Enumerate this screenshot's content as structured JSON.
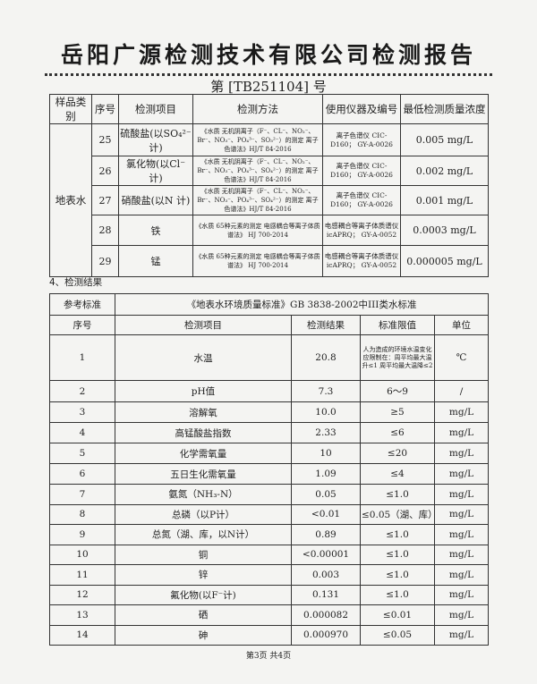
{
  "title": "岳阳广源检测技术有限公司检测报告",
  "report_no": "第 [TB251104] 号",
  "methods_table": {
    "headers": [
      "样品类别",
      "序号",
      "检测项目",
      "检测方法",
      "使用仪器及编号",
      "最低检测质量浓度"
    ],
    "category": "地表水",
    "rows": [
      {
        "no": "25",
        "item": "硫酸盐(以SO₄²⁻计)",
        "method": "《水质 无机阴离子（F⁻、CL⁻、NO₂⁻、Br⁻、NO₃⁻、PO₄³⁻、SO₃²⁻）的测定 离子色谱法》HJ/T 84-2016",
        "instrument": "离子色谱仪 CIC-D160； GY-A-0026",
        "limit": "0.005 mg/L"
      },
      {
        "no": "26",
        "item": "氯化物(以Cl⁻计)",
        "method": "《水质 无机阴离子（F⁻、CL⁻、NO₂⁻、Br⁻、NO₃⁻、PO₄³⁻、SO₄²⁻）的测定 离子色谱法》HJ/T 84-2016",
        "instrument": "离子色谱仪 CIC-D160； GY-A-0026",
        "limit": "0.002 mg/L"
      },
      {
        "no": "27",
        "item": "硝酸盐(以N 计)",
        "method": "《水质 无机阴离子（F⁻、CL⁻、NO₂⁻、Br⁻、NO₃⁻、PO₄³⁻、SO₄²⁻）的测定 离子色谱法》HJ/T 84-2016",
        "instrument": "离子色谱仪 CIC-D160； GY-A-0026",
        "limit": "0.001 mg/L"
      },
      {
        "no": "28",
        "item": "铁",
        "method": "《水质 65种元素的测定 电感耦合等离子体质谱法》 HJ 700-2014",
        "instrument": "电感耦合等离子体质谱仪icAPRQ； GY-A-0052",
        "limit": "0.0003 mg/L"
      },
      {
        "no": "29",
        "item": "锰",
        "method": "《水质 65种元素的测定 电感耦合等离子体质谱法》 HJ 700-2014",
        "instrument": "电感耦合等离子体质谱仪icAPRQ； GY-A-0052",
        "limit": "0.000005 mg/L"
      }
    ]
  },
  "section_title": "4、检测结果",
  "results_table": {
    "ref_label": "参考标准",
    "ref_value": "《地表水环境质量标准》GB 3838-2002中III类水标准",
    "headers": [
      "序号",
      "检测项目",
      "检测结果",
      "标准限值",
      "单位"
    ],
    "rows": [
      {
        "no": "1",
        "item": "水温",
        "result": "20.8",
        "std": "人为造成的环境水温变化应限制在：周平均最大温升≤1 周平均最大温降≤2",
        "unit": "℃"
      },
      {
        "no": "2",
        "item": "pH值",
        "result": "7.3",
        "std": "6～9",
        "unit": "/"
      },
      {
        "no": "3",
        "item": "溶解氧",
        "result": "10.0",
        "std": "≥5",
        "unit": "mg/L"
      },
      {
        "no": "4",
        "item": "高锰酸盐指数",
        "result": "2.33",
        "std": "≤6",
        "unit": "mg/L"
      },
      {
        "no": "5",
        "item": "化学需氧量",
        "result": "10",
        "std": "≤20",
        "unit": "mg/L"
      },
      {
        "no": "6",
        "item": "五日生化需氧量",
        "result": "1.09",
        "std": "≤4",
        "unit": "mg/L"
      },
      {
        "no": "7",
        "item": "氨氮（NH₃-N）",
        "result": "0.05",
        "std": "≤1.0",
        "unit": "mg/L"
      },
      {
        "no": "8",
        "item": "总磷（以P计）",
        "result": "<0.01",
        "std": "≤0.05（湖、库）",
        "unit": "mg/L"
      },
      {
        "no": "9",
        "item": "总氮（湖、库，以N计）",
        "result": "0.89",
        "std": "≤1.0",
        "unit": "mg/L"
      },
      {
        "no": "10",
        "item": "铜",
        "result": "<0.00001",
        "std": "≤1.0",
        "unit": "mg/L"
      },
      {
        "no": "11",
        "item": "锌",
        "result": "0.003",
        "std": "≤1.0",
        "unit": "mg/L"
      },
      {
        "no": "12",
        "item": "氟化物(以F⁻计)",
        "result": "0.131",
        "std": "≤1.0",
        "unit": "mg/L"
      },
      {
        "no": "13",
        "item": "硒",
        "result": "0.000082",
        "std": "≤0.01",
        "unit": "mg/L"
      },
      {
        "no": "14",
        "item": "砷",
        "result": "0.000970",
        "std": "≤0.05",
        "unit": "mg/L"
      }
    ]
  },
  "footer": "第3页  共4页"
}
